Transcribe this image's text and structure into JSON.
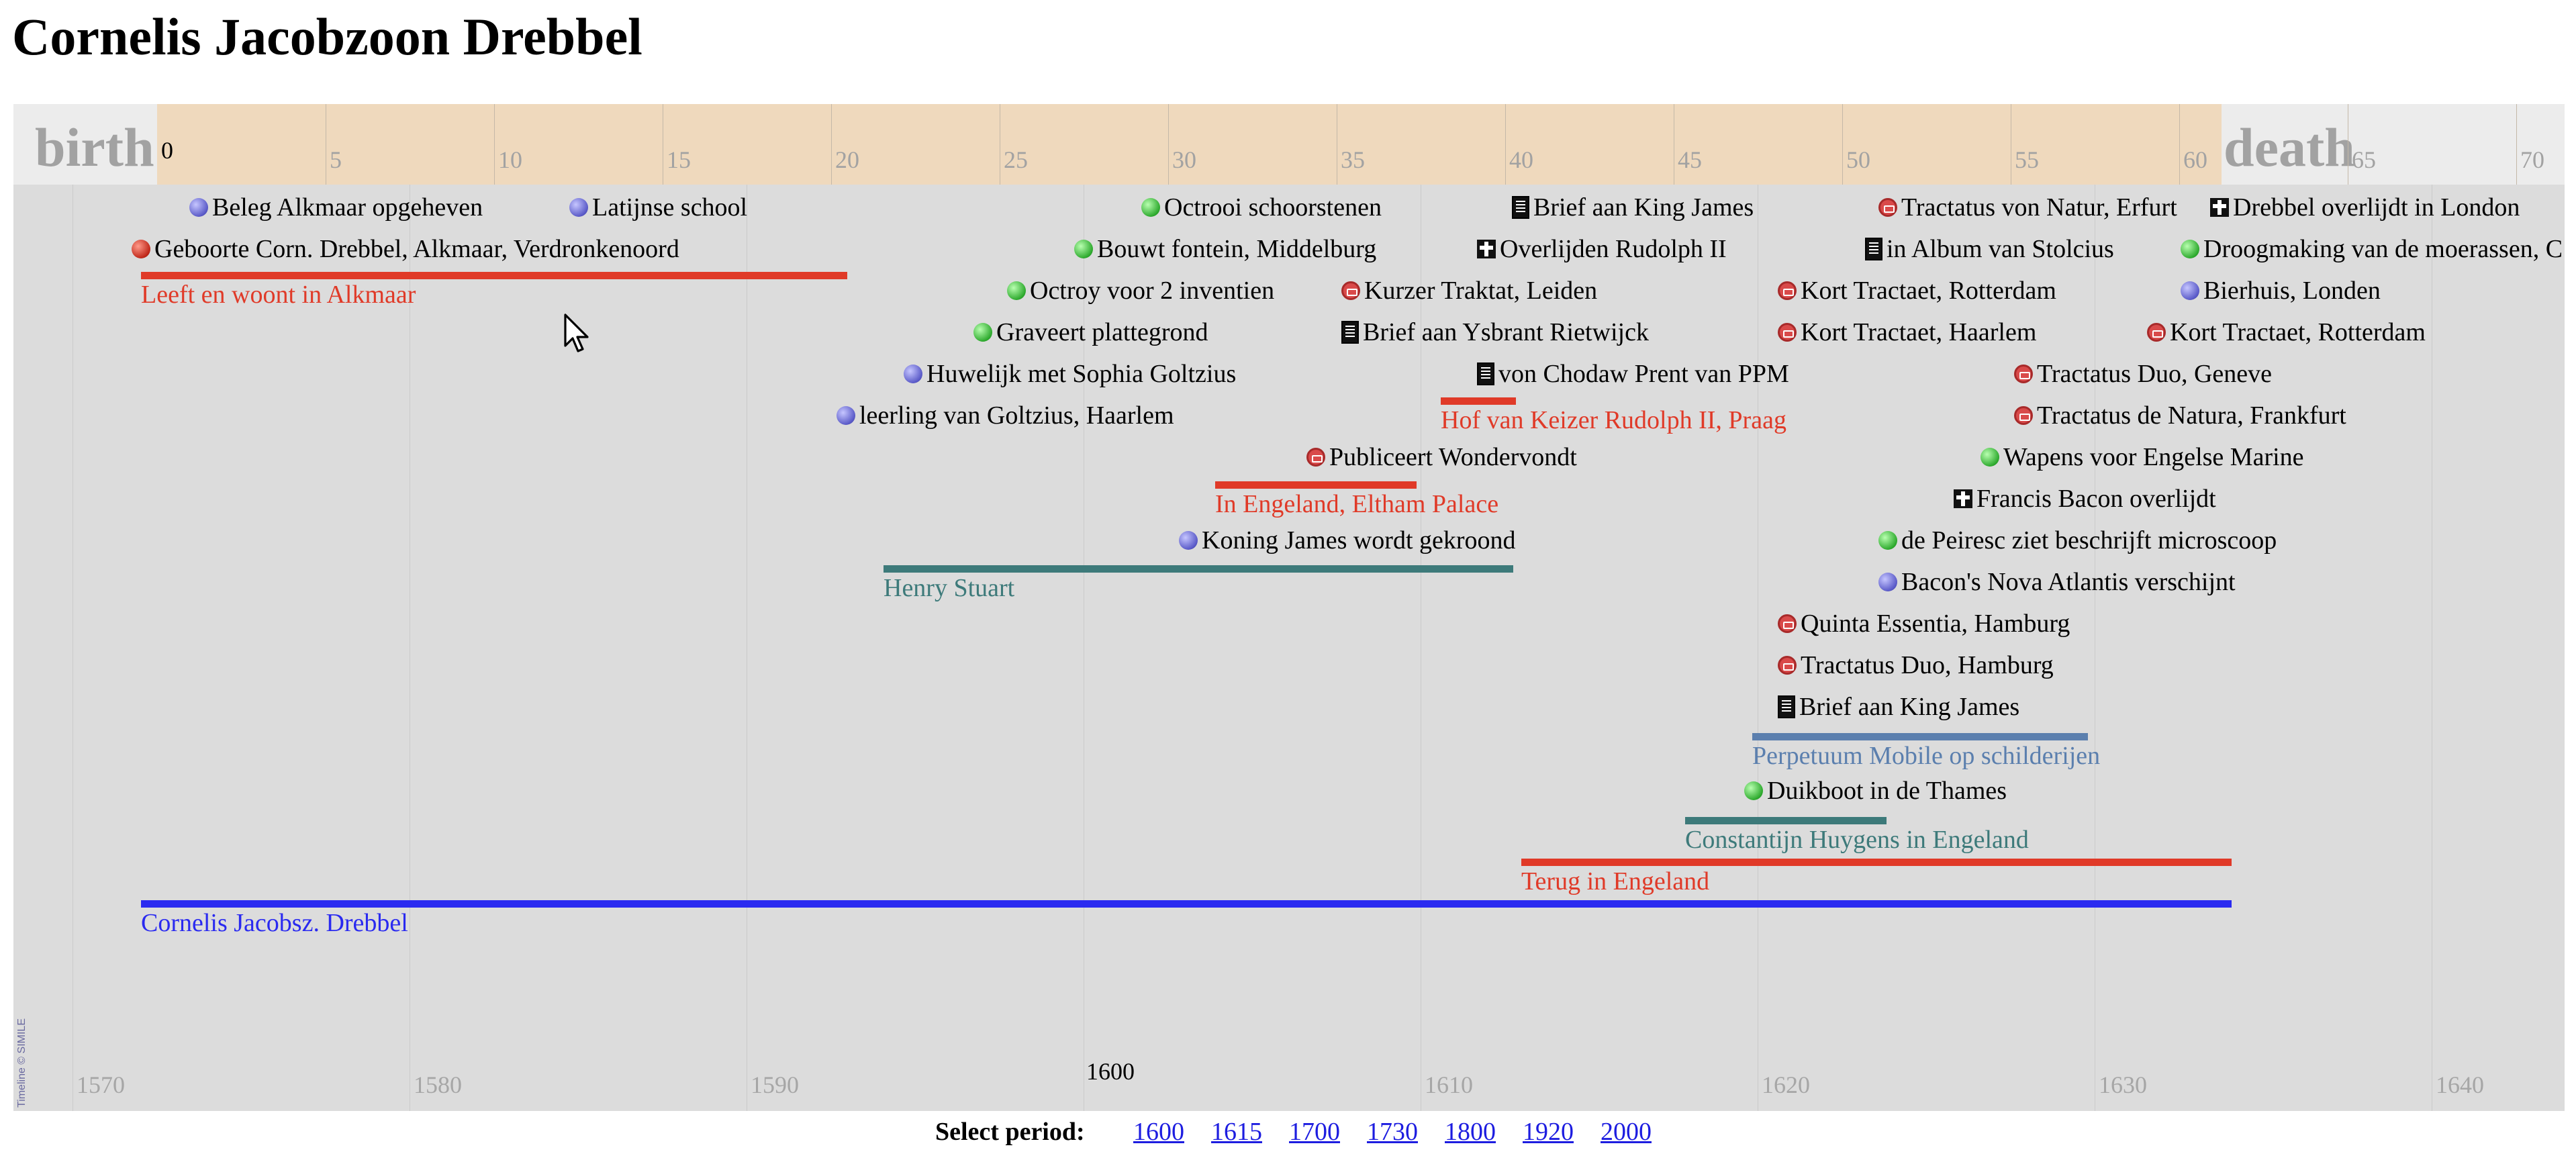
{
  "page": {
    "title": "Cornelis Jacobzoon Drebbel"
  },
  "timeline": {
    "age_band": {
      "birth_label": "birth",
      "death_label": "death",
      "ages": [
        "0",
        "5",
        "10",
        "15",
        "20",
        "25",
        "30",
        "35",
        "40",
        "45",
        "50",
        "55",
        "60",
        "65",
        "70"
      ]
    },
    "years": [
      "1570",
      "1580",
      "1590",
      "1600",
      "1610",
      "1620",
      "1630",
      "1640"
    ],
    "current_year": "1600",
    "events": [
      {
        "label": "Beleg Alkmaar opgeheven",
        "icon": "dot-blue"
      },
      {
        "label": "Latijnse school",
        "icon": "dot-blue"
      },
      {
        "label": "Octrooi schoorstenen",
        "icon": "dot-green"
      },
      {
        "label": "Brief aan King James",
        "icon": "letter-icon"
      },
      {
        "label": "Tractatus von Natur, Erfurt",
        "icon": "book-icon"
      },
      {
        "label": "Drebbel overlijdt in London",
        "icon": "cross-icon"
      },
      {
        "label": "Geboorte Corn. Drebbel, Alkmaar, Verdronkenoord",
        "icon": "dot-red"
      },
      {
        "label": "Bouwt fontein, Middelburg",
        "icon": "dot-green"
      },
      {
        "label": "Overlijden Rudolph II",
        "icon": "cross-icon"
      },
      {
        "label": "in Album van Stolcius",
        "icon": "letter-icon"
      },
      {
        "label": "Droogmaking van de moerassen, C",
        "icon": "dot-green"
      },
      {
        "label": "Octroy voor 2 inventien",
        "icon": "dot-green"
      },
      {
        "label": "Kurzer Traktat, Leiden",
        "icon": "book-icon"
      },
      {
        "label": "Kort Tractaet, Rotterdam",
        "icon": "book-icon"
      },
      {
        "label": "Bierhuis, Londen",
        "icon": "dot-blue"
      },
      {
        "label": "Graveert plattegrond",
        "icon": "dot-green"
      },
      {
        "label": "Brief aan Ysbrant Rietwijck",
        "icon": "letter-icon"
      },
      {
        "label": "Kort Tractaet, Haarlem",
        "icon": "book-icon"
      },
      {
        "label": "Kort Tractaet, Rotterdam",
        "icon": "book-icon"
      },
      {
        "label": "Huwelijk met Sophia Goltzius",
        "icon": "dot-blue"
      },
      {
        "label": "von Chodaw Prent van PPM",
        "icon": "letter-icon"
      },
      {
        "label": "Tractatus Duo, Geneve",
        "icon": "book-icon"
      },
      {
        "label": "leerling van Goltzius, Haarlem",
        "icon": "dot-blue"
      },
      {
        "label": "Tractatus de Natura, Frankfurt",
        "icon": "book-icon"
      },
      {
        "label": "Publiceert Wondervondt",
        "icon": "book-icon"
      },
      {
        "label": "Wapens voor Engelse Marine",
        "icon": "dot-green"
      },
      {
        "label": "Francis Bacon overlijdt",
        "icon": "cross-icon"
      },
      {
        "label": "Koning James wordt gekroond",
        "icon": "dot-blue"
      },
      {
        "label": "de Peiresc ziet beschrijft microscoop",
        "icon": "dot-green"
      },
      {
        "label": "Bacon's Nova Atlantis verschijnt",
        "icon": "dot-blue"
      },
      {
        "label": "Quinta Essentia, Hamburg",
        "icon": "book-icon"
      },
      {
        "label": "Tractatus Duo, Hamburg",
        "icon": "book-icon"
      },
      {
        "label": "Brief aan King James",
        "icon": "letter-icon"
      },
      {
        "label": "Duikboot in de Thames",
        "icon": "dot-green"
      }
    ],
    "spans": [
      {
        "label": "Leeft en woont in Alkmaar",
        "color": "#e03a28"
      },
      {
        "label": "Hof van Keizer Rudolph II, Praag",
        "color": "#e03a28"
      },
      {
        "label": "In Engeland, Eltham Palace",
        "color": "#e03a28"
      },
      {
        "label": "Henry Stuart",
        "color": "#3d7a7a"
      },
      {
        "label": "Perpetuum Mobile op schilderijen",
        "color": "#5b7fae"
      },
      {
        "label": "Constantijn Huygens in Engeland",
        "color": "#3d7a7a"
      },
      {
        "label": "Terug in Engeland",
        "color": "#e03a28"
      },
      {
        "label": "Cornelis Jacobsz. Drebbel",
        "color": "#2a2af0"
      }
    ],
    "copyright": "Timeline © SIMILE"
  },
  "period_selector": {
    "label": "Select period:",
    "options": [
      "1600",
      "1615",
      "1700",
      "1730",
      "1800",
      "1920",
      "2000"
    ]
  }
}
